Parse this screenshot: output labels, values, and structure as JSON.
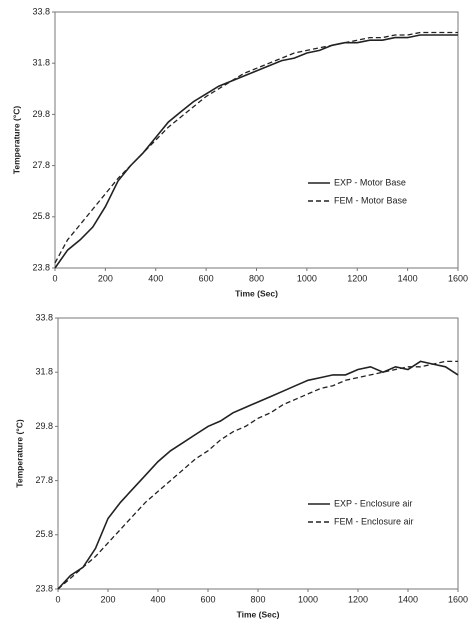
{
  "chart_data": [
    {
      "type": "line",
      "x_label": "Time (Sec)",
      "y_label": "Temperature (°C)",
      "x": [
        0,
        50,
        100,
        150,
        200,
        250,
        300,
        350,
        400,
        450,
        500,
        550,
        600,
        650,
        700,
        750,
        800,
        850,
        900,
        950,
        1000,
        1050,
        1100,
        1150,
        1200,
        1250,
        1300,
        1350,
        1400,
        1450,
        1500,
        1550,
        1600
      ],
      "xlim": [
        0,
        1600
      ],
      "xticks": [
        0,
        200,
        400,
        600,
        800,
        1000,
        1200,
        1400,
        1600
      ],
      "ylim": [
        23.8,
        33.8
      ],
      "yticks": [
        23.8,
        25.8,
        27.8,
        29.8,
        31.8,
        33.8
      ],
      "legend": "lower right",
      "grid": false,
      "series": [
        {
          "name": "EXP - Motor Base",
          "color": "#222222",
          "style": "solid",
          "values": [
            23.8,
            24.5,
            24.9,
            25.4,
            26.2,
            27.2,
            27.8,
            28.3,
            28.9,
            29.5,
            29.9,
            30.3,
            30.6,
            30.9,
            31.1,
            31.3,
            31.5,
            31.7,
            31.9,
            32.0,
            32.2,
            32.3,
            32.5,
            32.6,
            32.6,
            32.7,
            32.7,
            32.8,
            32.8,
            32.9,
            32.9,
            32.9,
            32.9
          ]
        },
        {
          "name": "FEM - Motor Base",
          "color": "#222222",
          "style": "dashed",
          "values": [
            24.0,
            24.9,
            25.5,
            26.1,
            26.7,
            27.3,
            27.8,
            28.3,
            28.8,
            29.3,
            29.7,
            30.1,
            30.5,
            30.8,
            31.1,
            31.4,
            31.6,
            31.8,
            32.0,
            32.2,
            32.3,
            32.4,
            32.5,
            32.6,
            32.7,
            32.8,
            32.8,
            32.9,
            32.9,
            33.0,
            33.0,
            33.0,
            33.0
          ]
        }
      ]
    },
    {
      "type": "line",
      "x_label": "Time (Sec)",
      "y_label": "Temperature (°C)",
      "x": [
        0,
        50,
        100,
        150,
        200,
        250,
        300,
        350,
        400,
        450,
        500,
        550,
        600,
        650,
        700,
        750,
        800,
        850,
        900,
        950,
        1000,
        1050,
        1100,
        1150,
        1200,
        1250,
        1300,
        1350,
        1400,
        1450,
        1500,
        1550,
        1600
      ],
      "xlim": [
        0,
        1600
      ],
      "xticks": [
        0,
        200,
        400,
        600,
        800,
        1000,
        1200,
        1400,
        1600
      ],
      "ylim": [
        23.8,
        33.8
      ],
      "yticks": [
        23.8,
        25.8,
        27.8,
        29.8,
        31.8,
        33.8
      ],
      "legend": "lower right",
      "grid": false,
      "series": [
        {
          "name": "EXP - Enclosure air",
          "color": "#222222",
          "style": "solid",
          "values": [
            23.8,
            24.3,
            24.6,
            25.3,
            26.4,
            27.0,
            27.5,
            28.0,
            28.5,
            28.9,
            29.2,
            29.5,
            29.8,
            30.0,
            30.3,
            30.5,
            30.7,
            30.9,
            31.1,
            31.3,
            31.5,
            31.6,
            31.7,
            31.7,
            31.9,
            32.0,
            31.8,
            32.0,
            31.9,
            32.2,
            32.1,
            32.0,
            31.7
          ]
        },
        {
          "name": "FEM - Enclosure air",
          "color": "#222222",
          "style": "dashed",
          "values": [
            23.8,
            24.2,
            24.6,
            25.0,
            25.5,
            26.0,
            26.5,
            27.0,
            27.4,
            27.8,
            28.2,
            28.6,
            28.9,
            29.3,
            29.6,
            29.8,
            30.1,
            30.3,
            30.6,
            30.8,
            31.0,
            31.2,
            31.3,
            31.5,
            31.6,
            31.7,
            31.8,
            31.9,
            32.0,
            32.0,
            32.1,
            32.2,
            32.2
          ]
        }
      ]
    }
  ]
}
